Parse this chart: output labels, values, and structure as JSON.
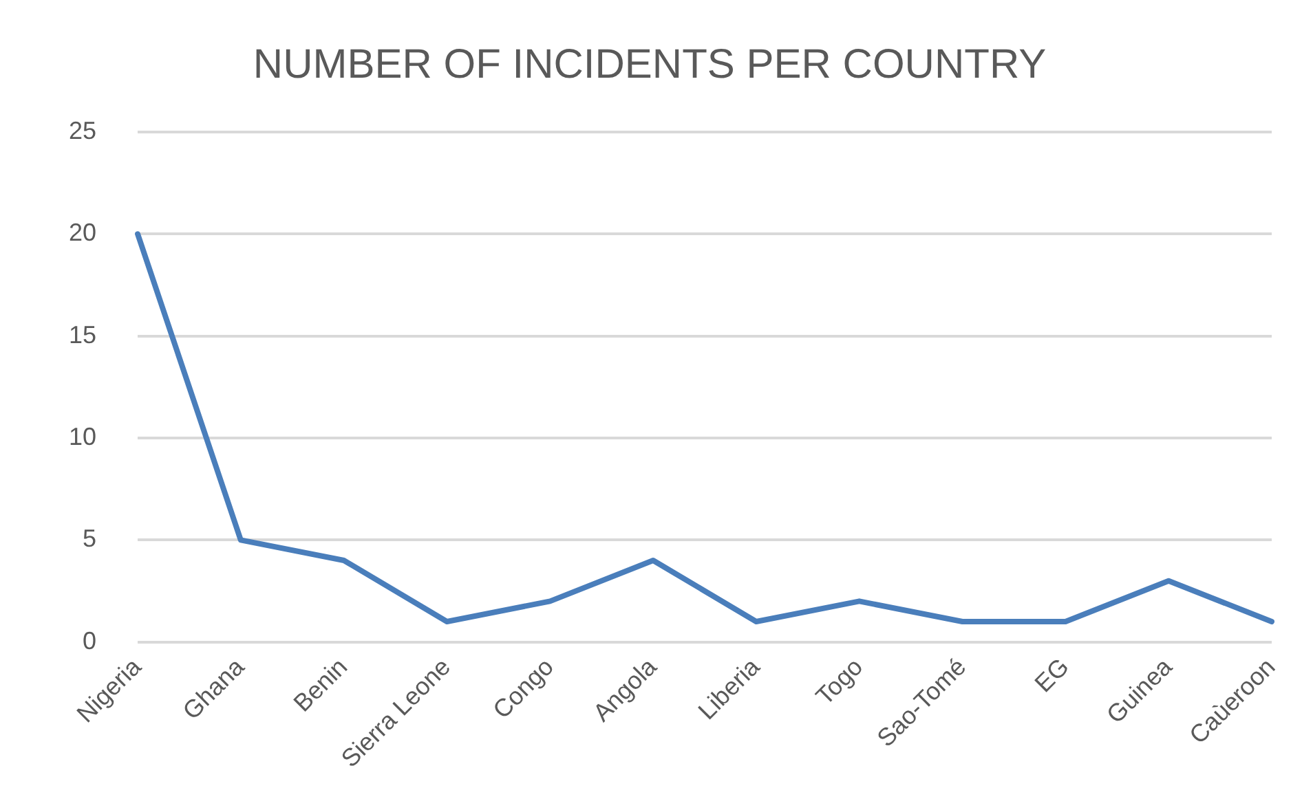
{
  "chart_data": {
    "type": "line",
    "title": "NUMBER OF INCIDENTS PER COUNTRY",
    "categories": [
      "Nigeria",
      "Ghana",
      "Benin",
      "Sierra Leone",
      "Congo",
      "Angola",
      "Liberia",
      "Togo",
      "Sao-Tomé",
      "EG",
      "Guinea",
      "Caùeroon"
    ],
    "series": [
      {
        "color": "#4a7ebb",
        "values": [
          20,
          5,
          4,
          1,
          2,
          4,
          1,
          2,
          1,
          1,
          3,
          1
        ]
      }
    ],
    "ylim": [
      0,
      25
    ],
    "yticks": [
      0,
      5,
      10,
      15,
      20,
      25
    ],
    "grid": "y",
    "legend": false,
    "marker": "none",
    "line_style": "solid"
  }
}
